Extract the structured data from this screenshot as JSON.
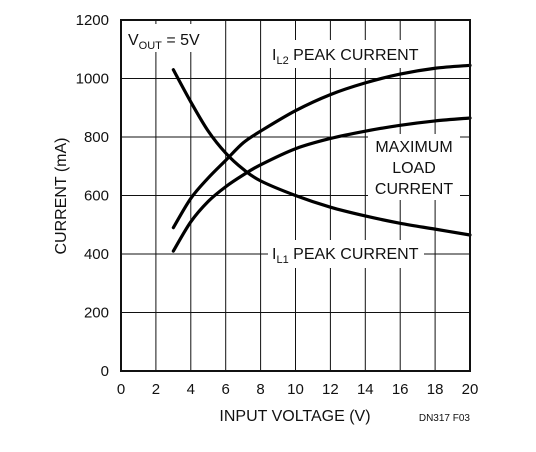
{
  "chart_data": {
    "type": "line",
    "xlabel": "INPUT VOLTAGE (V)",
    "ylabel": "CURRENT (mA)",
    "xlim": [
      0,
      20
    ],
    "ylim": [
      0,
      1200
    ],
    "xticks": [
      "0",
      "2",
      "4",
      "6",
      "8",
      "10",
      "12",
      "14",
      "16",
      "18",
      "20"
    ],
    "yticks": [
      "0",
      "200",
      "400",
      "600",
      "800",
      "1000",
      "1200"
    ],
    "grid": true,
    "condition": {
      "main": "V",
      "sub": "OUT",
      "rest": " = 5V"
    },
    "figure_code": "DN317 F03",
    "series": [
      {
        "name": "IL2 PEAK CURRENT",
        "label_main": "I",
        "label_sub": "L2",
        "label_rest": " PEAK CURRENT",
        "color": "#000000",
        "x": [
          3,
          4,
          5,
          6,
          7,
          8,
          10,
          12,
          14,
          16,
          18,
          20
        ],
        "y": [
          490,
          590,
          660,
          720,
          780,
          820,
          890,
          945,
          985,
          1015,
          1035,
          1045
        ]
      },
      {
        "name": "MAXIMUM LOAD CURRENT",
        "label_lines": [
          "MAXIMUM",
          "LOAD",
          "CURRENT"
        ],
        "color": "#000000",
        "x": [
          3,
          4,
          5,
          6,
          7,
          8,
          10,
          12,
          14,
          16,
          18,
          20
        ],
        "y": [
          410,
          510,
          580,
          630,
          670,
          705,
          760,
          795,
          820,
          840,
          855,
          865
        ]
      },
      {
        "name": "IL1 PEAK CURRENT",
        "label_main": "I",
        "label_sub": "L1",
        "label_rest": " PEAK CURRENT",
        "color": "#000000",
        "x": [
          3,
          4,
          5,
          6,
          7,
          8,
          10,
          12,
          14,
          16,
          18,
          20
        ],
        "y": [
          1030,
          920,
          820,
          745,
          690,
          650,
          600,
          560,
          530,
          505,
          485,
          465
        ]
      }
    ]
  }
}
